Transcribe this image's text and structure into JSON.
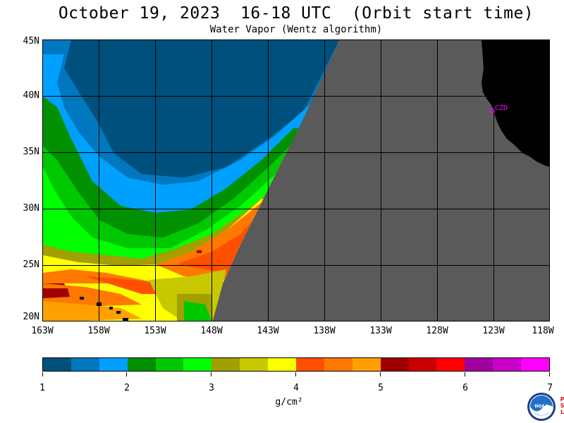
{
  "title": "October 19, 2023  16-18 UTC  (Orbit start time)",
  "subtitle": "Water Vapor (Wentz algorithm)",
  "map": {
    "lat_labels": [
      "45N",
      "40N",
      "35N",
      "30N",
      "25N",
      "20N"
    ],
    "lon_labels": [
      "163W",
      "158W",
      "153W",
      "148W",
      "143W",
      "138W",
      "133W",
      "128W",
      "123W",
      "118W"
    ],
    "station_label": "CZD",
    "station_color": "#ff00ff",
    "land_color": "#000000",
    "no_data_color": "#5a5a5a"
  },
  "colorbar": {
    "colors": [
      "#00507e",
      "#0078c0",
      "#00a0ff",
      "#009000",
      "#00c800",
      "#00ff00",
      "#a0a000",
      "#c8c800",
      "#ffff00",
      "#ff5000",
      "#ff7800",
      "#ffa000",
      "#a00000",
      "#c80000",
      "#ff0000",
      "#a000a0",
      "#c800c8",
      "#ff00ff"
    ],
    "tick_labels": [
      "1",
      "2",
      "3",
      "4",
      "5",
      "6",
      "7"
    ],
    "units": "g/cm²"
  },
  "logo": {
    "name": "NOAA",
    "side_text": "PSL"
  }
}
